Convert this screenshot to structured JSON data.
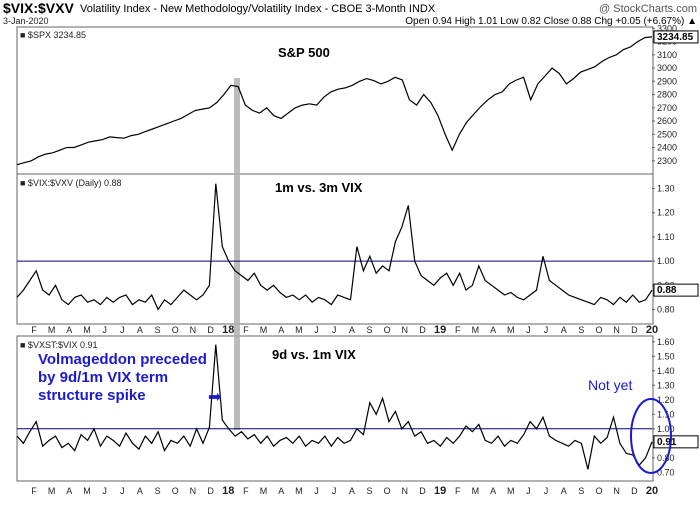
{
  "header": {
    "symbol": "$VIX:$VXV",
    "description": "Volatility Index - New Methodology/Volatility Index - CBOE 3-Month  INDX",
    "date": "3-Jan-2020",
    "quote": "Open 0.94  High 1.01  Low 0.82  Close 0.88  Chg +0.05 (+6.67%) ▲",
    "watermark": "@ StockCharts.com"
  },
  "colors": {
    "price_line": "#000000",
    "reference_line": "#000080",
    "annotation_blue": "#1a1ad0",
    "highlight_band": "#b0b0b0"
  },
  "x_axis": {
    "month_labels": [
      "F",
      "M",
      "A",
      "M",
      "J",
      "J",
      "A",
      "S",
      "O",
      "N",
      "D",
      "18",
      "F",
      "M",
      "A",
      "M",
      "J",
      "J",
      "A",
      "S",
      "O",
      "N",
      "D",
      "19",
      "F",
      "M",
      "A",
      "M",
      "J",
      "J",
      "A",
      "S",
      "O",
      "N",
      "D",
      "20"
    ],
    "year_labels": [
      "18",
      "19",
      "20"
    ]
  },
  "chart_data": [
    {
      "type": "line",
      "panel": "top",
      "legend": "■ $SPX 3234.85",
      "title": "S&P 500",
      "series": [
        {
          "name": "$SPX",
          "values": [
            2270,
            2285,
            2300,
            2330,
            2350,
            2360,
            2380,
            2400,
            2400,
            2420,
            2440,
            2450,
            2460,
            2480,
            2475,
            2470,
            2490,
            2500,
            2520,
            2540,
            2560,
            2580,
            2600,
            2620,
            2650,
            2680,
            2690,
            2700,
            2740,
            2800,
            2870,
            2860,
            2720,
            2680,
            2660,
            2700,
            2640,
            2620,
            2660,
            2700,
            2720,
            2730,
            2720,
            2780,
            2820,
            2840,
            2850,
            2870,
            2900,
            2920,
            2905,
            2880,
            2900,
            2930,
            2910,
            2760,
            2720,
            2800,
            2740,
            2640,
            2500,
            2380,
            2500,
            2590,
            2650,
            2710,
            2760,
            2800,
            2820,
            2880,
            2910,
            2930,
            2760,
            2880,
            2940,
            3000,
            2960,
            2880,
            2920,
            2970,
            2990,
            3010,
            3050,
            3080,
            3100,
            3140,
            3160,
            3200,
            3230,
            3235
          ]
        }
      ],
      "ylim": [
        2200,
        3310
      ],
      "y_ticks": [
        "3300",
        "3200",
        "3100",
        "3000",
        "2900",
        "2800",
        "2700",
        "2600",
        "2500",
        "2400",
        "2300"
      ],
      "last_value_label": "3234.85"
    },
    {
      "type": "line",
      "panel": "middle",
      "legend": "■ $VIX:$VXV (Daily) 0.88",
      "title": "1m vs. 3m VIX",
      "series": [
        {
          "name": "$VIX:$VXV",
          "values": [
            0.85,
            0.88,
            0.92,
            0.96,
            0.88,
            0.86,
            0.9,
            0.84,
            0.82,
            0.85,
            0.86,
            0.83,
            0.84,
            0.82,
            0.85,
            0.83,
            0.85,
            0.86,
            0.82,
            0.84,
            0.83,
            0.86,
            0.8,
            0.84,
            0.82,
            0.85,
            0.88,
            0.86,
            0.84,
            0.86,
            0.9,
            1.32,
            1.06,
            1.0,
            0.96,
            0.94,
            0.92,
            0.95,
            0.9,
            0.88,
            0.9,
            0.87,
            0.85,
            0.86,
            0.84,
            0.86,
            0.83,
            0.85,
            0.84,
            0.82,
            0.86,
            0.85,
            0.84,
            1.06,
            0.96,
            1.02,
            0.95,
            0.98,
            0.96,
            1.08,
            1.14,
            1.23,
            1.0,
            0.94,
            0.92,
            0.9,
            0.93,
            0.95,
            0.9,
            0.95,
            0.88,
            0.9,
            0.98,
            0.92,
            0.9,
            0.88,
            0.86,
            0.87,
            0.85,
            0.84,
            0.86,
            0.88,
            1.02,
            0.92,
            0.9,
            0.88,
            0.86,
            0.85,
            0.84,
            0.83,
            0.82,
            0.85,
            0.84,
            0.82,
            0.85,
            0.83,
            0.86,
            0.83,
            0.84,
            0.88
          ]
        }
      ],
      "ylim": [
        0.74,
        1.36
      ],
      "y_ticks": [
        "1.30",
        "1.20",
        "1.10",
        "1.00",
        "0.90",
        "0.80"
      ],
      "reference_line": 1.0,
      "last_value_label": "0.88"
    },
    {
      "type": "line",
      "panel": "bottom",
      "legend": "■ $VXST:$VIX 0.91",
      "title": "9d vs. 1m VIX",
      "series": [
        {
          "name": "$VXST:$VIX",
          "values": [
            0.95,
            0.9,
            0.98,
            1.05,
            0.88,
            0.92,
            0.95,
            0.87,
            0.9,
            0.85,
            0.96,
            0.92,
            1.0,
            0.88,
            0.95,
            0.92,
            0.88,
            0.97,
            0.9,
            0.86,
            0.95,
            0.9,
            0.98,
            0.85,
            0.92,
            0.9,
            0.95,
            0.88,
            1.0,
            0.9,
            1.01,
            1.58,
            1.06,
            1.0,
            0.95,
            0.98,
            0.93,
            0.96,
            0.9,
            0.95,
            0.88,
            0.92,
            0.94,
            0.9,
            0.95,
            0.88,
            0.92,
            0.9,
            0.95,
            0.88,
            0.94,
            0.9,
            0.92,
            1.0,
            0.96,
            1.18,
            1.1,
            1.21,
            1.05,
            1.12,
            1.0,
            1.05,
            0.95,
            0.98,
            0.9,
            0.92,
            0.88,
            0.94,
            0.9,
            0.95,
            1.02,
            0.98,
            1.03,
            0.92,
            0.9,
            0.95,
            0.88,
            0.92,
            0.9,
            0.96,
            1.05,
            1.0,
            1.08,
            0.95,
            0.92,
            0.9,
            0.88,
            0.92,
            0.9,
            0.72,
            0.95,
            0.9,
            0.94,
            1.08,
            0.9,
            0.83,
            0.82,
            0.75,
            0.8,
            0.91
          ]
        }
      ],
      "ylim": [
        0.64,
        1.64
      ],
      "y_ticks": [
        "1.60",
        "1.50",
        "1.40",
        "1.30",
        "1.20",
        "1.10",
        "1.00",
        "0.90",
        "0.80",
        "0.70"
      ],
      "reference_line": 1.0,
      "last_value_label": "0.91"
    }
  ],
  "annotations": {
    "volmageddon_lines": [
      "Volmageddon preceded",
      "by 9d/1m VIX term",
      "structure spike"
    ],
    "arrow": "➡",
    "not_yet": "Not yet"
  }
}
